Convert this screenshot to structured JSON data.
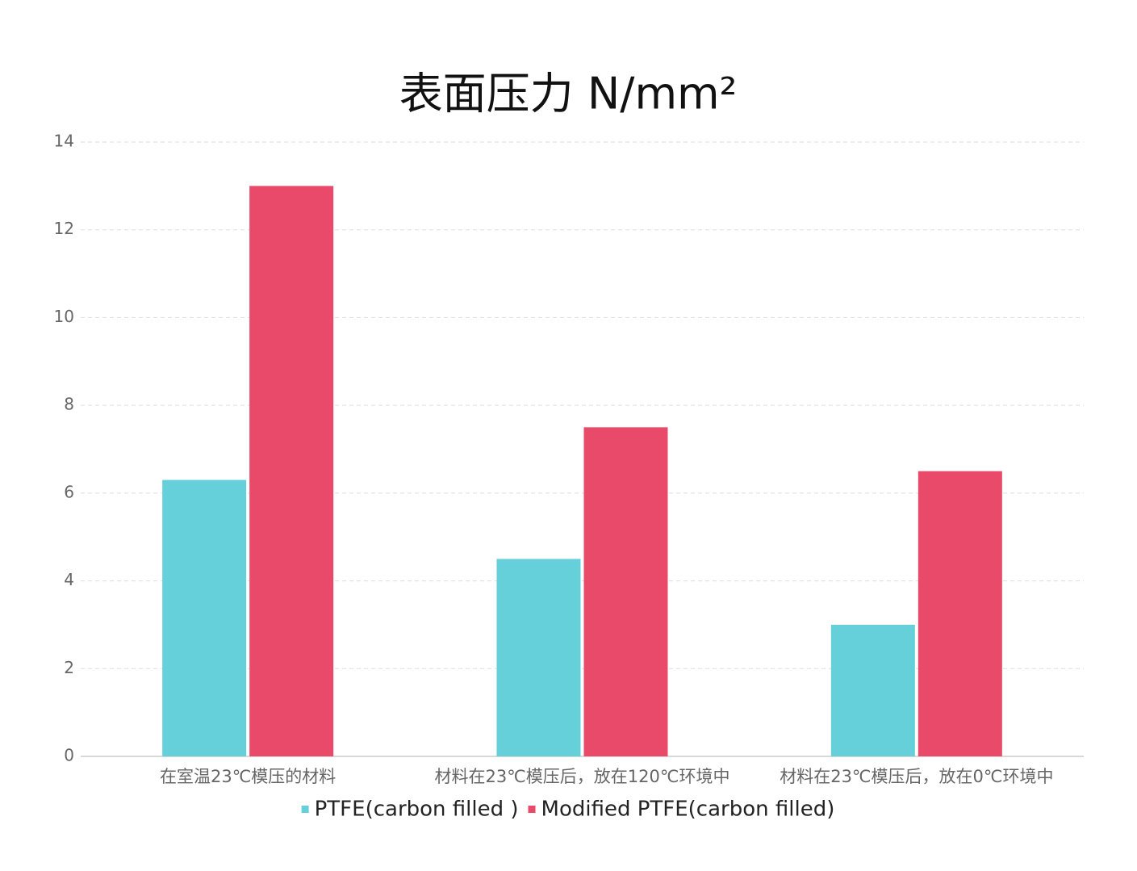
{
  "chart_data": {
    "type": "bar",
    "title": "表面压力 N/mm²",
    "categories": [
      "在室温23℃模压的材料",
      "材料在23℃模压后，放在120℃环境中",
      "材料在23℃模压后，放在0℃环境中"
    ],
    "series": [
      {
        "name": "PTFE(carbon filled )",
        "color": "#66d0da",
        "values": [
          6.3,
          4.5,
          3
        ]
      },
      {
        "name": "Modified PTFE(carbon filled)",
        "color": "#e94a69",
        "values": [
          13,
          7.5,
          6.5
        ]
      }
    ],
    "ylim": [
      0,
      14
    ],
    "yticks": [
      0,
      2,
      4,
      6,
      8,
      10,
      12,
      14
    ],
    "grid": true,
    "legend": "bottom"
  }
}
